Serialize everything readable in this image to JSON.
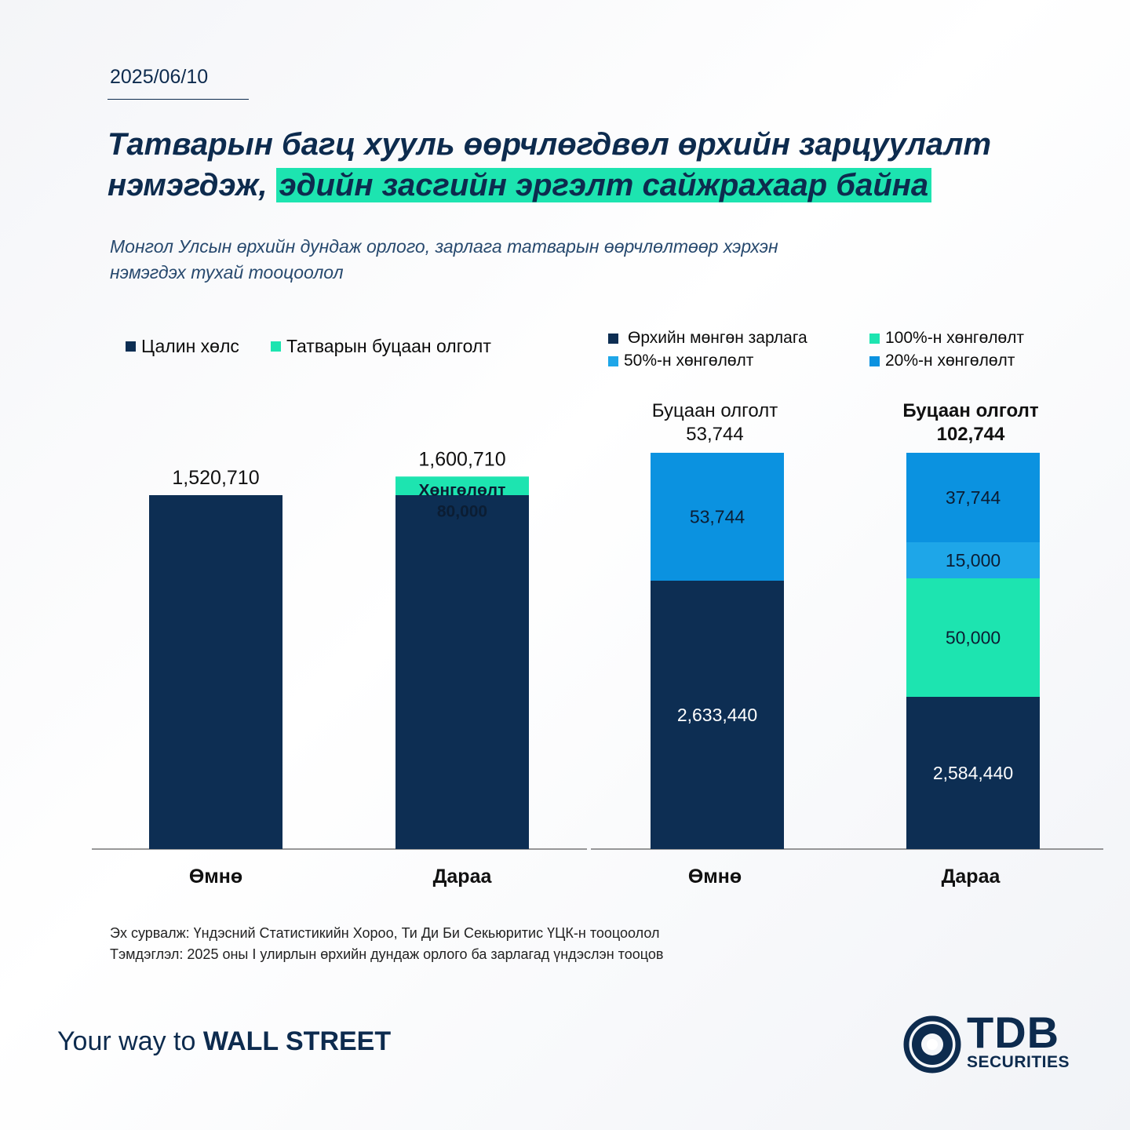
{
  "date": "2025/06/10",
  "title": {
    "part1": "Татварын багц хууль өөрчлөгдвөл өрхийн зарцуулалт нэмэгдэж, ",
    "highlight": "эдийн засгийн эргэлт сайжрахаар байна"
  },
  "subtitle_line1": "Монгол Улсын өрхийн дундаж орлого, зарлага татварын өөрчлөлтөөр хэрхэн",
  "subtitle_line2": "нэмэгдэх тухай тооцоолол",
  "colors": {
    "navy": "#0d2e53",
    "green": "#1de4b0",
    "light_blue": "#1ea6e8",
    "blue": "#0b92e0"
  },
  "chart_data": [
    {
      "type": "bar",
      "stacked": true,
      "categories": [
        "Өмнө",
        "Дараа"
      ],
      "series": [
        {
          "name": "Цалин хөлс",
          "color": "#0d2e53",
          "values": [
            1520710,
            1520710
          ]
        },
        {
          "name": "Татварын буцаан олголт",
          "color": "#1de4b0",
          "values": [
            0,
            80000
          ]
        }
      ],
      "totals": [
        "1,520,710",
        "1,600,710"
      ],
      "segment_labels": {
        "after_rebate_line1": "Хөнгөлөлт",
        "after_rebate_line2": "80,000"
      },
      "legend": [
        "Цалин хөлс",
        "Татварын буцаан олголт"
      ]
    },
    {
      "type": "bar",
      "stacked": true,
      "categories": [
        "Өмнө",
        "Дараа"
      ],
      "series": [
        {
          "name": "Өрхийн мөнгөн зарлага",
          "color": "#0d2e53",
          "values": [
            2633440,
            2584440
          ],
          "labels": [
            "2,633,440",
            "2,584,440"
          ]
        },
        {
          "name": "100%-н хөнгөлөлт",
          "color": "#1de4b0",
          "values": [
            0,
            50000
          ],
          "labels": [
            "",
            "50,000"
          ]
        },
        {
          "name": "50%-н хөнгөлөлт",
          "color": "#1ea6e8",
          "values": [
            0,
            15000
          ],
          "labels": [
            "",
            "15,000"
          ]
        },
        {
          "name": "20%-н хөнгөлөлт",
          "color": "#0b92e0",
          "values": [
            53744,
            37744
          ],
          "labels": [
            "53,744",
            "37,744"
          ]
        }
      ],
      "top_labels": [
        {
          "line1": "Буцаан олголт",
          "line2": "53,744",
          "bold": false
        },
        {
          "line1": "Буцаан олголт",
          "line2": "102,744",
          "bold": true
        }
      ],
      "legend": [
        "Өрхийн мөнгөн зарлага",
        "100%-н хөнгөлөлт",
        "50%-н хөнгөлөлт",
        "20%-н хөнгөлөлт"
      ]
    }
  ],
  "footer": {
    "source": "Эх сурвалж: Үндэсний Статистикийн Хороо, Ти Ди Би Секьюритис ҮЦК-н тооцоолол",
    "note": "Тэмдэглэл: 2025 оны I улирлын өрхийн дундаж орлого ба зарлагад үндэслэн тооцов"
  },
  "tagline": {
    "light": "Your way to ",
    "bold": "WALL STREET"
  },
  "logo": {
    "main": "TDB",
    "sub": "SECURITIES"
  }
}
